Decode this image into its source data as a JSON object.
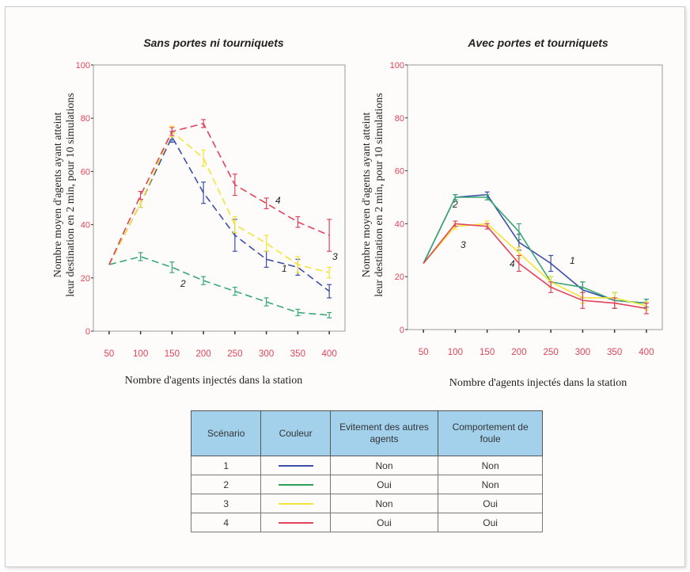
{
  "chart_data": [
    {
      "type": "line",
      "title": "Sans portes ni tourniquets",
      "xlabel": "Nombre d'agents injectés dans la station",
      "ylabel": [
        "Nombre moyen d'agents ayant atteint",
        "leur destination en 2 min, pour 10 simulations"
      ],
      "x": [
        50,
        100,
        150,
        200,
        250,
        300,
        350,
        400
      ],
      "ylim": [
        0,
        100
      ],
      "yticks": [
        0,
        20,
        40,
        60,
        80,
        100
      ],
      "line_style": "dashed",
      "series": [
        {
          "name": "1",
          "color": "#3c4fa6",
          "values": [
            25,
            48,
            73,
            52,
            36,
            27,
            24,
            15
          ],
          "errors": [
            0,
            1.5,
            2,
            4,
            6,
            3,
            3,
            2.5
          ]
        },
        {
          "name": "2",
          "color": "#3aa776",
          "values": [
            25,
            28,
            24,
            19,
            15,
            11,
            7,
            6
          ],
          "errors": [
            0,
            1.5,
            2,
            1.5,
            1.5,
            1.5,
            1.2,
            1
          ]
        },
        {
          "name": "3",
          "color": "#f4e437",
          "values": [
            25,
            48,
            75,
            65,
            40,
            33,
            25,
            22
          ],
          "errors": [
            0,
            1.5,
            2,
            3,
            3,
            3,
            3,
            2
          ]
        },
        {
          "name": "4",
          "color": "#e0445a",
          "values": [
            25,
            51,
            75,
            78,
            55,
            48,
            41,
            36
          ],
          "errors": [
            0,
            1.5,
            1.5,
            1.5,
            4,
            2,
            2,
            6
          ]
        }
      ],
      "annotations": [
        "1",
        "2",
        "3",
        "4"
      ]
    },
    {
      "type": "line",
      "title": "Avec portes et tourniquets",
      "xlabel": "Nombre d'agents injectés dans la station",
      "ylabel": [
        "Nombre moyen d'agents ayant atteint",
        "leur destination en 2 min, pour 10 simulations"
      ],
      "x": [
        50,
        100,
        150,
        200,
        250,
        300,
        350,
        400
      ],
      "ylim": [
        0,
        100
      ],
      "yticks": [
        0,
        20,
        40,
        60,
        80,
        100
      ],
      "line_style": "solid",
      "series": [
        {
          "name": "1",
          "color": "#3c4fa6",
          "values": [
            25,
            50,
            51,
            33,
            25,
            15,
            11,
            10
          ],
          "errors": [
            0,
            1,
            1,
            3,
            3,
            3,
            3,
            1.5
          ]
        },
        {
          "name": "2",
          "color": "#3aa776",
          "values": [
            25,
            50,
            50,
            37,
            18,
            16,
            11,
            10
          ],
          "errors": [
            0,
            1,
            1,
            3,
            2,
            2,
            3,
            1.5
          ]
        },
        {
          "name": "3",
          "color": "#f4e437",
          "values": [
            25,
            39,
            40,
            29,
            18,
            12,
            12,
            9
          ],
          "errors": [
            0,
            1,
            1,
            2,
            2,
            2,
            2,
            1.5
          ]
        },
        {
          "name": "4",
          "color": "#e0445a",
          "values": [
            25,
            40,
            39,
            25,
            16,
            11,
            10,
            8
          ],
          "errors": [
            0,
            1,
            1,
            3,
            2,
            3,
            2,
            2
          ]
        }
      ],
      "annotations": [
        "1",
        "2",
        "3",
        "4"
      ]
    }
  ],
  "legend_table": {
    "headers": [
      "Scénario",
      "Couleur",
      "Evitement des autres agents",
      "Comportement de foule"
    ],
    "rows": [
      {
        "scenario": "1",
        "color": "#3c4fa6",
        "evitement": "Non",
        "foule": "Non"
      },
      {
        "scenario": "2",
        "color": "#2e9e57",
        "evitement": "Oui",
        "foule": "Non"
      },
      {
        "scenario": "3",
        "color": "#f4e437",
        "evitement": "Non",
        "foule": "Oui"
      },
      {
        "scenario": "4",
        "color": "#e0445a",
        "evitement": "Oui",
        "foule": "Oui"
      }
    ]
  }
}
